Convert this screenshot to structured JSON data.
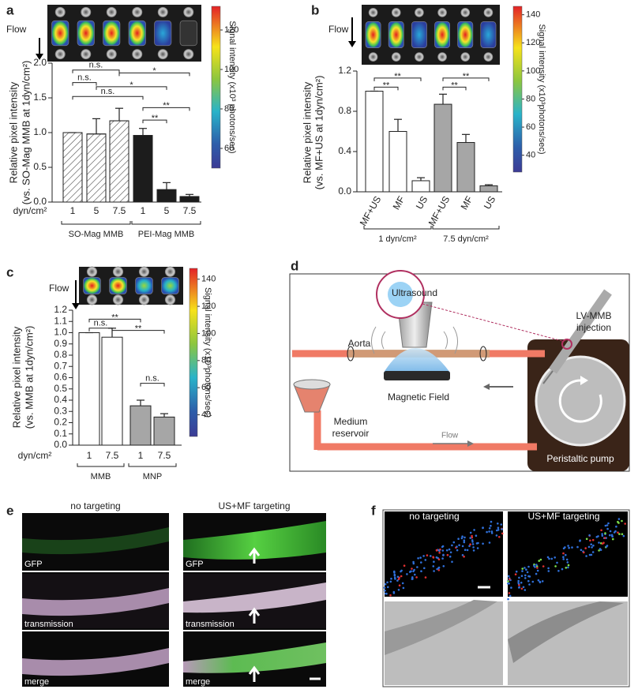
{
  "panel_labels": [
    "a",
    "b",
    "c",
    "d",
    "e",
    "f"
  ],
  "chart_data": [
    {
      "type": "bar",
      "ylabel": [
        "Relative pixel intensity",
        "(vs. SO-Mag MMB at 1dyn/cm²)"
      ],
      "xlabel": "dyn/cm²",
      "ylim": [
        0,
        2
      ],
      "yticks": [
        {
          "value": 0,
          "label": "0.0"
        },
        0.5,
        {
          "value": 1,
          "label": "1.0"
        },
        1.5,
        {
          "value": 2,
          "label": "2.0"
        }
      ],
      "series": [
        {
          "name": "SO-Mag MMB",
          "color": "#ffffff",
          "hatch": true,
          "categories": [
            "1",
            "5",
            "7.5"
          ],
          "values": [
            1.0,
            0.98,
            1.17
          ],
          "errors": [
            0,
            0.22,
            0.18
          ]
        },
        {
          "name": "PEI-Mag MMB",
          "color": "#1c1c1c",
          "categories": [
            "1",
            "5",
            "7.5"
          ],
          "values": [
            0.96,
            0.18,
            0.08
          ],
          "errors": [
            0.1,
            0.1,
            0.03
          ]
        }
      ],
      "annotations": [
        "n.s.",
        "*",
        "n.s.",
        "*",
        "n.s.",
        "**",
        "**"
      ],
      "flow_label": "Flow",
      "colorbar": {
        "label": "Signal intensity (x10³ photons/sec)",
        "lim": [
          50,
          132
        ],
        "ticks": [
          60,
          80,
          100,
          120
        ]
      }
    },
    {
      "type": "bar",
      "ylabel": [
        "Relative pixel intensity",
        "(vs. MF+US at 1dyn/cm²)"
      ],
      "ylim": [
        0,
        1.2
      ],
      "yticks": [
        {
          "value": 0,
          "label": "0.0"
        },
        0.4,
        0.8,
        1.2
      ],
      "series": [
        {
          "name": "1 dyn/cm²",
          "color": "#ffffff",
          "categories": [
            "MF+US",
            "MF",
            "US"
          ],
          "values": [
            1.0,
            0.6,
            0.11
          ],
          "errors": [
            0,
            0.12,
            0.03
          ]
        },
        {
          "name": "7.5 dyn/cm²",
          "color": "#a6a6a6",
          "categories": [
            "MF+US",
            "MF",
            "US"
          ],
          "values": [
            0.87,
            0.49,
            0.06
          ],
          "errors": [
            0.1,
            0.08,
            0.01
          ]
        }
      ],
      "annotations": [
        "**",
        "**",
        "**",
        "**"
      ],
      "flow_label": "Flow",
      "colorbar": {
        "label": "Signal intensity (x10³photons/sec)",
        "lim": [
          28,
          146
        ],
        "ticks": [
          40,
          60,
          80,
          100,
          120,
          140
        ]
      }
    },
    {
      "type": "bar",
      "ylabel": [
        "Relative pixel intensity",
        "(vs. MMB at 1dyn/cm²)"
      ],
      "xlabel": "dyn/cm²",
      "ylim": [
        0,
        1.2
      ],
      "yticks": [
        {
          "value": 0,
          "label": "0.0"
        },
        0.1,
        0.2,
        0.3,
        0.4,
        0.5,
        0.6,
        0.7,
        0.8,
        0.9,
        {
          "value": 1,
          "label": "1.0"
        },
        1.1,
        1.2
      ],
      "series": [
        {
          "name": "MMB",
          "color": "#ffffff",
          "categories": [
            "1",
            "7.5"
          ],
          "values": [
            1.0,
            0.96
          ],
          "errors": [
            0,
            0.08
          ]
        },
        {
          "name": "MNP",
          "color": "#a6a6a6",
          "categories": [
            "1",
            "7.5"
          ],
          "values": [
            0.35,
            0.25
          ],
          "errors": [
            0.05,
            0.03
          ]
        }
      ],
      "annotations": [
        "**",
        "n.s.",
        "**",
        "n.s."
      ],
      "flow_label": "Flow",
      "colorbar": {
        "label": "Signal intensity (x10³photons/sec)",
        "lim": [
          24,
          148
        ],
        "ticks": [
          40,
          60,
          80,
          100,
          120,
          140
        ]
      }
    }
  ],
  "panel_d": {
    "ultrasound": "Ultrasound",
    "injection": [
      "LV-MMB",
      "injection"
    ],
    "aorta": "Aorta",
    "magnetic_field": "Magnetic Field",
    "reservoir": [
      "Medium",
      "reservoir"
    ],
    "flow": "Flow",
    "pump": "Peristaltic pump"
  },
  "panel_e": {
    "columns": [
      "no targeting",
      "US+MF targeting"
    ],
    "labels": [
      [
        "GFP",
        "transmission",
        "merge"
      ],
      [
        "GFP",
        "transmission",
        "merge"
      ]
    ]
  },
  "panel_f": {
    "columns": [
      "no targeting",
      "US+MF targeting"
    ]
  }
}
